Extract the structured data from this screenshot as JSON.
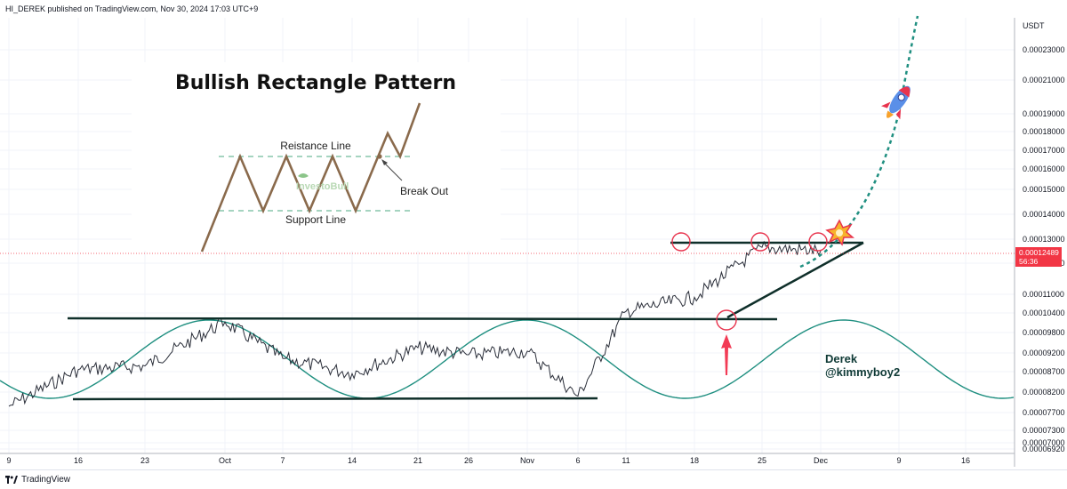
{
  "header": {
    "published": "HI_DEREK published on TradingView.com, Nov 30, 2024 17:03 UTC+9"
  },
  "footer": {
    "brand": "TradingView"
  },
  "axis": {
    "currency": "USDT",
    "price_labels": [
      "0.00023000",
      "0.00021000",
      "0.00019000",
      "0.00018000",
      "0.00017000",
      "0.00016000",
      "0.00015000",
      "0.00014000",
      "0.00013000",
      "0.00012000",
      "0.00011000",
      "0.00010400",
      "0.00009800",
      "0.00009200",
      "0.00008700",
      "0.00008200",
      "0.00007700",
      "0.00007300",
      "0.00007000",
      "0.00006920"
    ],
    "last_price": "0.00012489",
    "countdown": "56:36",
    "date_labels": [
      "9",
      "16",
      "23",
      "Oct",
      "7",
      "14",
      "21",
      "26",
      "Nov",
      "6",
      "11",
      "18",
      "25",
      "Dec",
      "9",
      "16"
    ]
  },
  "inset": {
    "title": "Bullish Rectangle Pattern",
    "resistance_label": "Reistance Line",
    "support_label": "Support Line",
    "breakout_label": "Break Out",
    "watermark": "InvestoBull"
  },
  "signature": {
    "line1": "Derek",
    "line2": "@kimmyboy2"
  },
  "colors": {
    "trendline": "#0f2f2a",
    "sine": "#1f8f80",
    "projection": "#1f8f80",
    "circle": "#e8344e",
    "arrow": "#f23b55",
    "price_label_bg": "#f23645",
    "candles": "#2a2e39"
  },
  "chart_data": {
    "type": "line",
    "title": "",
    "x": [
      "9",
      "16",
      "23",
      "Oct",
      "7",
      "14",
      "21",
      "26",
      "Nov",
      "6",
      "11",
      "18",
      "25",
      "Dec"
    ],
    "series": [
      {
        "values": [
          7.85e-05,
          8.75e-05,
          8.85e-05,
          0.0001012,
          9.05e-05,
          8.65e-05,
          9.35e-05,
          9.15e-05,
          9.25e-05,
          8.1e-05,
          0.0001045,
          0.000109,
          0.0001265,
          0.0001249
        ]
      }
    ],
    "yscale": "log",
    "ylim": [
      6.92e-05,
      0.00025
    ],
    "annotations": [
      "Bullish Rectangle Pattern",
      "Reistance Line",
      "Support Line",
      "Break Out",
      "Derek",
      "@kimmyboy2"
    ]
  }
}
